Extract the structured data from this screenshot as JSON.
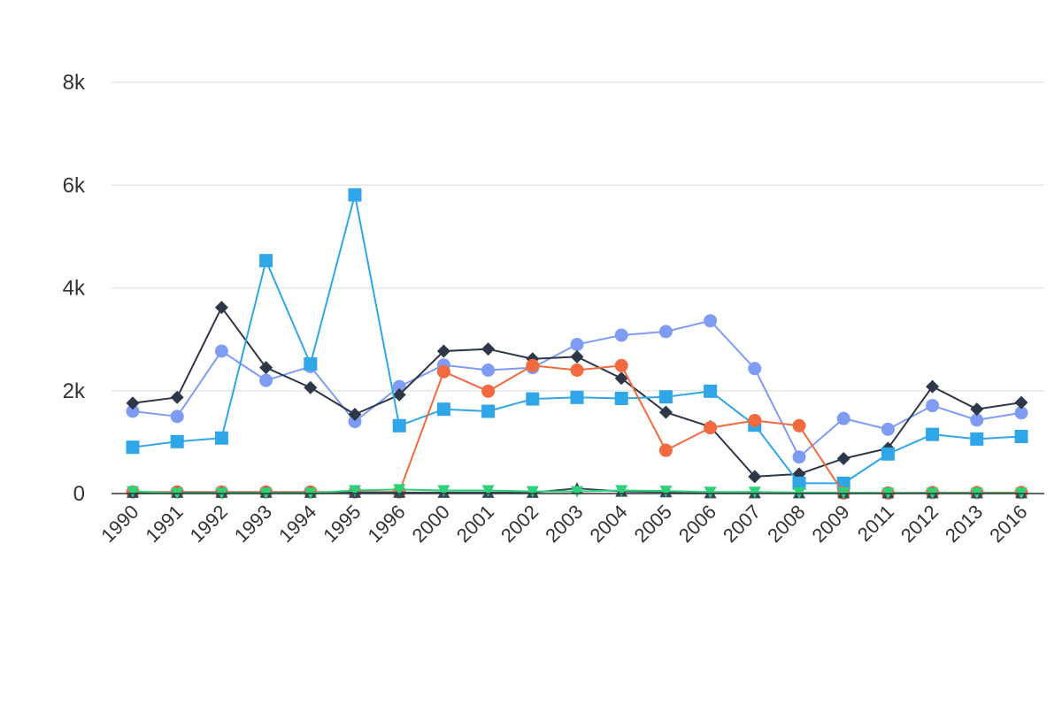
{
  "chart_data": {
    "type": "line",
    "title": "",
    "xlabel": "",
    "ylabel": "",
    "categories": [
      "1990",
      "1991",
      "1992",
      "1993",
      "1994",
      "1995",
      "1996",
      "2000",
      "2001",
      "2002",
      "2003",
      "2004",
      "2005",
      "2006",
      "2007",
      "2008",
      "2009",
      "2011",
      "2012",
      "2013",
      "2016"
    ],
    "ylim": [
      0,
      8000
    ],
    "y_ticks": [
      {
        "value": 0,
        "label": "0"
      },
      {
        "value": 2000,
        "label": "2k"
      },
      {
        "value": 4000,
        "label": "4k"
      },
      {
        "value": 6000,
        "label": "6k"
      },
      {
        "value": 8000,
        "label": "8k"
      }
    ],
    "grid": true,
    "legend": "none",
    "series": [
      {
        "color": "#7f9cf5",
        "marker": "circle",
        "values": [
          1600,
          1500,
          2770,
          2200,
          2470,
          1400,
          2080,
          2500,
          2400,
          2450,
          2900,
          3080,
          3150,
          3360,
          2430,
          710,
          1460,
          1250,
          1710,
          1430,
          1570
        ]
      },
      {
        "color": "#2d3748",
        "marker": "diamond",
        "values": [
          1760,
          1870,
          3620,
          2450,
          2060,
          1540,
          1920,
          2770,
          2810,
          2620,
          2660,
          2240,
          1580,
          1300,
          330,
          380,
          680,
          880,
          2080,
          1640,
          1770
        ]
      },
      {
        "color": "#2fa6e8",
        "marker": "square",
        "values": [
          900,
          1010,
          1080,
          4530,
          2520,
          5810,
          1320,
          1640,
          1600,
          1840,
          1870,
          1850,
          1880,
          1990,
          1330,
          200,
          200,
          770,
          1150,
          1060,
          1110
        ]
      },
      {
        "color": "#f26a3e",
        "marker": "circle",
        "values": [
          30,
          30,
          30,
          30,
          30,
          30,
          30,
          2370,
          1990,
          2490,
          2400,
          2490,
          840,
          1280,
          1420,
          1320,
          10,
          10,
          20,
          20,
          20
        ]
      },
      {
        "color": "#34495e",
        "marker": "triangle",
        "values": [
          20,
          20,
          20,
          20,
          20,
          20,
          20,
          20,
          20,
          20,
          100,
          40,
          30,
          10,
          10,
          10,
          10,
          10,
          10,
          10,
          10
        ]
      },
      {
        "color": "#2dd17a",
        "marker": "triangle-down",
        "values": [
          40,
          10,
          10,
          10,
          10,
          60,
          80,
          60,
          60,
          40,
          40,
          60,
          50,
          30,
          30,
          20,
          20,
          10,
          10,
          10,
          10
        ]
      }
    ]
  }
}
